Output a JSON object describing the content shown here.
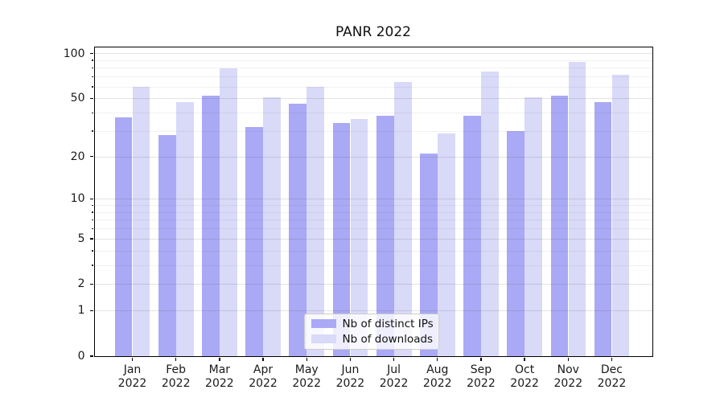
{
  "chart_data": {
    "type": "bar",
    "title": "PANR 2022",
    "categories": [
      "Jan",
      "Feb",
      "Mar",
      "Apr",
      "May",
      "Jun",
      "Jul",
      "Aug",
      "Sep",
      "Oct",
      "Nov",
      "Dec"
    ],
    "year_label": "2022",
    "series": [
      {
        "name": "Nb of distinct IPs",
        "color": "#a9a9f5",
        "values": [
          37,
          28,
          52,
          32,
          46,
          34,
          38,
          21,
          38,
          30,
          52,
          47
        ]
      },
      {
        "name": "Nb of downloads",
        "color": "#d9d9f8",
        "values": [
          60,
          47,
          80,
          51,
          60,
          36,
          64,
          29,
          76,
          51,
          88,
          72
        ]
      }
    ],
    "yscale": "log1p",
    "ylim": [
      0,
      112
    ],
    "y_major_ticks": [
      0,
      1,
      2,
      5,
      10,
      20,
      50,
      100
    ],
    "y_minor_ticks": [
      3,
      4,
      6,
      7,
      8,
      9,
      30,
      40,
      60,
      70,
      80,
      90
    ],
    "grid": true,
    "legend_position": "lower center",
    "axis_color": "#000000",
    "gridline_major_color": "#dddddd",
    "gridline_minor_color": "#ededed"
  }
}
